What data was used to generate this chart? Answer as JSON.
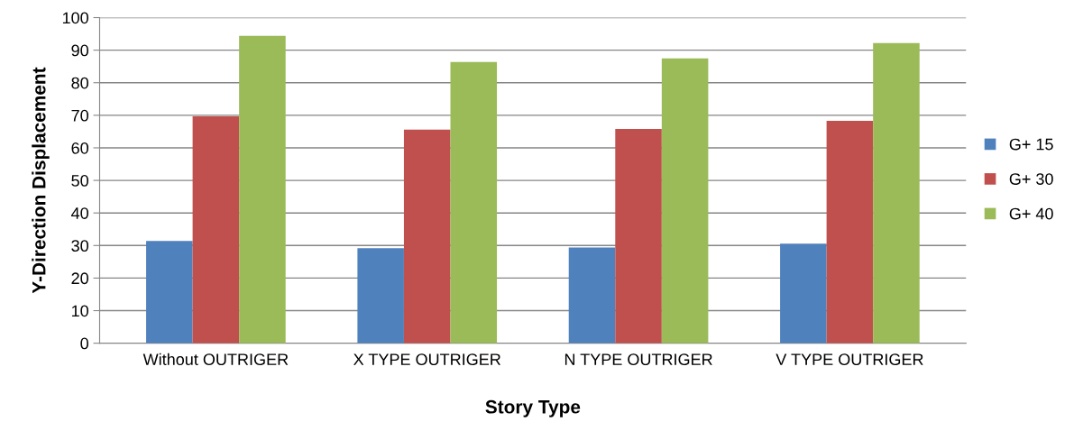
{
  "chart_data": {
    "type": "bar",
    "xlabel": "Story Type",
    "ylabel": "Y-Direction Displacement",
    "categories": [
      "Without OUTRIGER",
      "X TYPE OUTRIGER",
      "N TYPE OUTRIGER",
      "V TYPE OUTRIGER"
    ],
    "series": [
      {
        "name": "G+ 15",
        "color": "#4f81bd",
        "values": [
          31.4,
          29.2,
          29.4,
          30.6
        ]
      },
      {
        "name": "G+ 30",
        "color": "#c0504d",
        "values": [
          69.7,
          65.6,
          65.8,
          68.3
        ]
      },
      {
        "name": "G+ 40",
        "color": "#9bbb59",
        "values": [
          94.4,
          86.4,
          87.5,
          92.2
        ]
      }
    ],
    "ylim": [
      0,
      100
    ],
    "yticks": [
      0,
      10,
      20,
      30,
      40,
      50,
      60,
      70,
      80,
      90,
      100
    ],
    "grid": "y",
    "legend": "right"
  }
}
